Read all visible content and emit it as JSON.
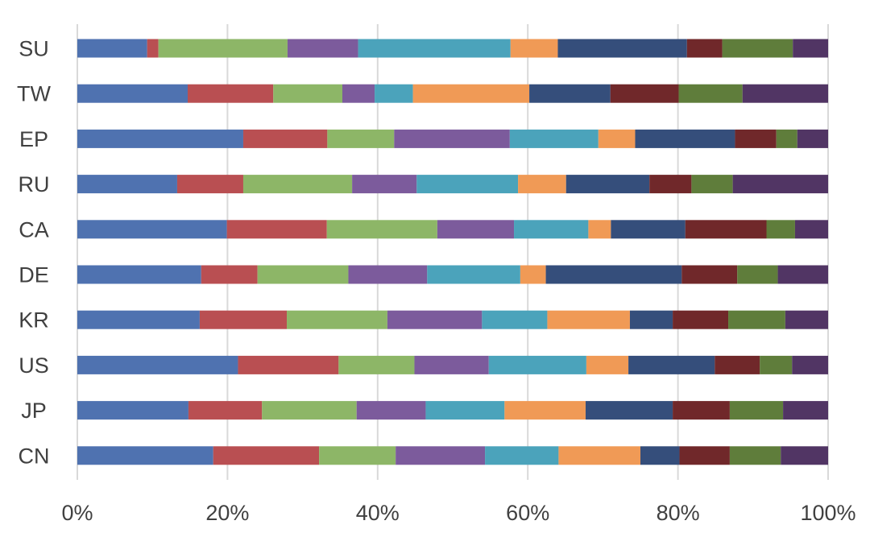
{
  "chart_data": {
    "type": "bar",
    "orientation": "horizontal",
    "stacked": "percent",
    "categories": [
      "SU",
      "TW",
      "EP",
      "RU",
      "CA",
      "DE",
      "KR",
      "US",
      "JP",
      "CN"
    ],
    "xlim": [
      0,
      100
    ],
    "x_ticks": [
      "0%",
      "20%",
      "40%",
      "60%",
      "80%",
      "100%"
    ],
    "grid": true,
    "legend": "none",
    "series": [
      {
        "color": "#4f72b0",
        "values": [
          9.3,
          14.7,
          22.1,
          13.3,
          19.9,
          16.5,
          16.3,
          21.4,
          14.8,
          18.1
        ]
      },
      {
        "color": "#b94f52",
        "values": [
          1.5,
          11.4,
          11.2,
          8.8,
          13.3,
          7.5,
          11.6,
          13.4,
          9.8,
          14.1
        ]
      },
      {
        "color": "#8db667",
        "values": [
          17.2,
          9.2,
          8.9,
          14.5,
          14.7,
          12.1,
          13.4,
          10.1,
          12.6,
          10.2
        ]
      },
      {
        "color": "#7c5b9c",
        "values": [
          9.4,
          4.3,
          15.4,
          8.6,
          10.2,
          10.5,
          12.6,
          9.9,
          9.2,
          11.9
        ]
      },
      {
        "color": "#4ba3bb",
        "values": [
          20.3,
          5.1,
          11.8,
          13.5,
          9.9,
          12.4,
          8.7,
          13.0,
          10.5,
          9.8
        ]
      },
      {
        "color": "#f09a56",
        "values": [
          6.3,
          15.5,
          4.9,
          6.4,
          3.0,
          3.4,
          11.0,
          5.6,
          10.8,
          10.9
        ]
      },
      {
        "color": "#354e7b",
        "values": [
          17.2,
          10.8,
          13.3,
          11.1,
          9.9,
          18.1,
          5.7,
          11.5,
          11.6,
          5.2
        ]
      },
      {
        "color": "#70282a",
        "values": [
          4.7,
          9.1,
          5.5,
          5.6,
          10.8,
          7.4,
          7.4,
          6.0,
          7.6,
          6.7
        ]
      },
      {
        "color": "#5f7d3b",
        "values": [
          9.4,
          8.5,
          2.8,
          5.5,
          3.8,
          5.4,
          7.6,
          4.3,
          7.1,
          6.8
        ]
      },
      {
        "color": "#513564",
        "values": [
          4.7,
          11.4,
          4.1,
          12.7,
          4.4,
          6.7,
          5.7,
          4.8,
          6.0,
          6.3
        ]
      }
    ]
  }
}
